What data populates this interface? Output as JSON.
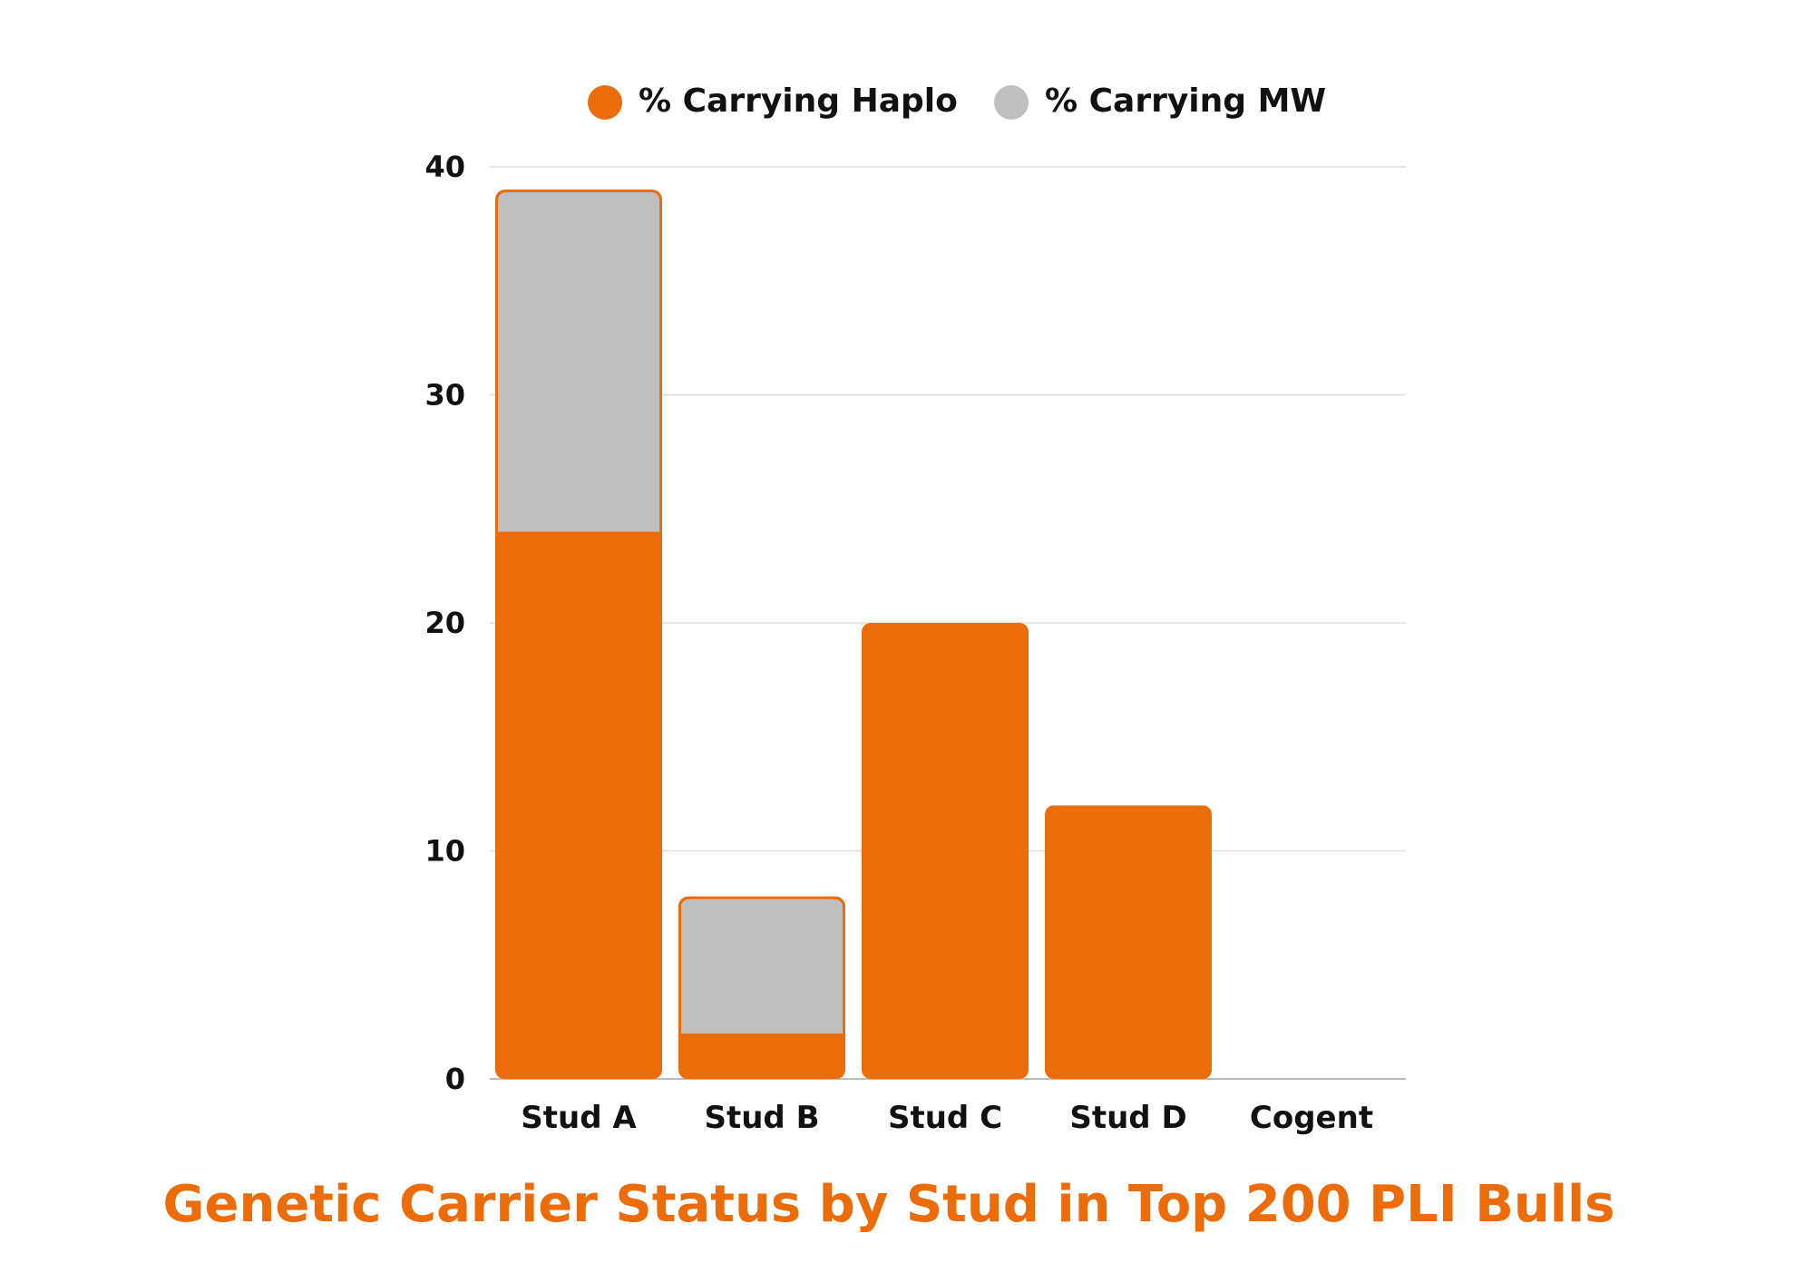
{
  "colors": {
    "haplo": "#ED6C0A",
    "mw": "#BFBFBF",
    "grid": "#DDDDDD",
    "axis": "#BBBBBB",
    "title": "#ED6C0A",
    "text": "#111111"
  },
  "chart_data": {
    "type": "bar",
    "stacked": true,
    "title": "Genetic Carrier Status by Stud in Top 200 PLI Bulls",
    "xlabel": "",
    "ylabel": "",
    "ylim": [
      0,
      40
    ],
    "yticks": [
      "0",
      "10",
      "20",
      "30",
      "40"
    ],
    "grid": true,
    "legend_position": "top",
    "categories": [
      "Stud A",
      "Stud B",
      "Stud C",
      "Stud D",
      "Cogent"
    ],
    "series": [
      {
        "name": "% Carrying Haplo",
        "color": "#ED6C0A",
        "values": [
          24,
          2,
          20,
          12,
          0
        ]
      },
      {
        "name": "% Carrying MW",
        "color": "#BFBFBF",
        "values": [
          15,
          6,
          0,
          0,
          0
        ]
      }
    ]
  }
}
